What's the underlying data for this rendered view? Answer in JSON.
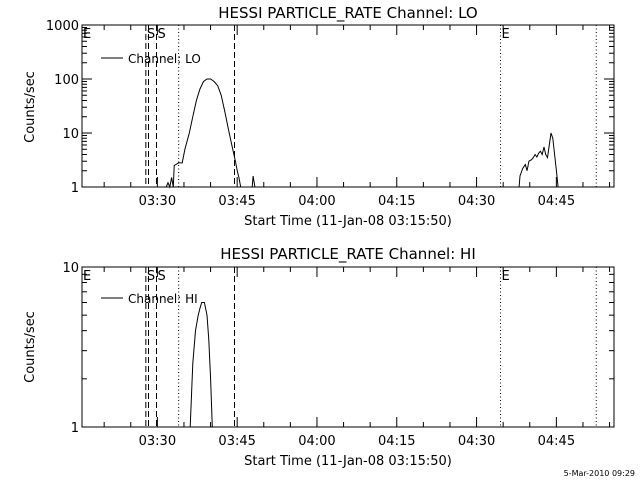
{
  "footer_stamp": "5-Mar-2010 09:29",
  "chart_data": [
    {
      "type": "line",
      "title": "HESSI PARTICLE_RATE Channel: LO",
      "xlabel": "Start Time (11-Jan-08 03:15:50)",
      "ylabel": "Counts/sec",
      "y_scale": "log",
      "ylim": [
        1,
        1000
      ],
      "y_ticks": [
        "1",
        "10",
        "100",
        "1000"
      ],
      "xlim": [
        "03:15:50",
        "04:55:50"
      ],
      "x_ticks": [
        "03:30",
        "03:45",
        "04:00",
        "04:15",
        "04:30",
        "04:45"
      ],
      "legend": {
        "position": "top-left",
        "entries": [
          "Channel: LO"
        ]
      },
      "markers": [
        {
          "label": "E",
          "time": "03:15:50",
          "style": "dotted"
        },
        {
          "label": "S",
          "time": "03:27:50",
          "style": "dashed"
        },
        {
          "label": "",
          "time": "03:28:20",
          "style": "dashed"
        },
        {
          "label": "S",
          "time": "03:29:50",
          "style": "dashed"
        },
        {
          "label": "",
          "time": "03:34:00",
          "style": "dotted"
        },
        {
          "label": "",
          "time": "03:44:30",
          "style": "dashed"
        },
        {
          "label": "E",
          "time": "04:34:30",
          "style": "dotted"
        },
        {
          "label": "",
          "time": "04:52:30",
          "style": "dotted"
        }
      ],
      "series": [
        {
          "name": "Channel: LO",
          "segments": [
            [
              [
                "03:31:40",
                1
              ],
              [
                "03:32:00",
                1.2
              ],
              [
                "03:32:20",
                1
              ],
              [
                "03:32:40",
                1.5
              ],
              [
                "03:33:00",
                1
              ],
              [
                "03:33:10",
                2.5
              ],
              [
                "03:34:00",
                2.8
              ],
              [
                "03:34:40",
                2.8
              ],
              [
                "03:35:10",
                5
              ],
              [
                "03:36:00",
                10
              ],
              [
                "03:36:40",
                20
              ],
              [
                "03:37:20",
                40
              ],
              [
                "03:38:00",
                65
              ],
              [
                "03:38:40",
                90
              ],
              [
                "03:39:20",
                100
              ],
              [
                "03:40:00",
                100
              ],
              [
                "03:40:40",
                90
              ],
              [
                "03:41:20",
                75
              ],
              [
                "03:42:00",
                50
              ],
              [
                "03:42:40",
                25
              ],
              [
                "03:43:20",
                12
              ],
              [
                "03:44:00",
                6
              ],
              [
                "03:44:40",
                3
              ],
              [
                "03:45:00",
                2
              ],
              [
                "03:45:20",
                1.5
              ],
              [
                "03:45:40",
                1
              ]
            ],
            [
              [
                "03:47:50",
                1
              ],
              [
                "03:48:00",
                1.6
              ],
              [
                "03:48:20",
                1
              ]
            ],
            [
              [
                "04:38:00",
                1
              ],
              [
                "04:38:10",
                1.6
              ],
              [
                "04:38:40",
                2.2
              ],
              [
                "04:39:10",
                2.6
              ],
              [
                "04:39:30",
                2
              ],
              [
                "04:39:50",
                3
              ],
              [
                "04:40:20",
                3.2
              ],
              [
                "04:40:40",
                3.5
              ],
              [
                "04:41:00",
                4
              ],
              [
                "04:41:20",
                3.6
              ],
              [
                "04:41:40",
                4.2
              ],
              [
                "04:42:00",
                4.6
              ],
              [
                "04:42:20",
                4
              ],
              [
                "04:42:40",
                5.5
              ],
              [
                "04:43:00",
                4
              ],
              [
                "04:43:20",
                3.5
              ],
              [
                "04:43:40",
                6
              ],
              [
                "04:44:00",
                10
              ],
              [
                "04:44:20",
                8
              ],
              [
                "04:44:40",
                4
              ],
              [
                "04:45:00",
                2
              ],
              [
                "04:45:20",
                1
              ]
            ]
          ]
        }
      ]
    },
    {
      "type": "line",
      "title": "HESSI PARTICLE_RATE Channel: HI",
      "xlabel": "Start Time (11-Jan-08 03:15:50)",
      "ylabel": "Counts/sec",
      "y_scale": "log",
      "ylim": [
        1,
        10
      ],
      "y_ticks": [
        "1",
        "10"
      ],
      "xlim": [
        "03:15:50",
        "04:55:50"
      ],
      "x_ticks": [
        "03:30",
        "03:45",
        "04:00",
        "04:15",
        "04:30",
        "04:45"
      ],
      "legend": {
        "position": "top-left",
        "entries": [
          "Channel: HI"
        ]
      },
      "markers": [
        {
          "label": "E",
          "time": "03:15:50",
          "style": "dotted"
        },
        {
          "label": "S",
          "time": "03:27:50",
          "style": "dashed"
        },
        {
          "label": "",
          "time": "03:28:20",
          "style": "dashed"
        },
        {
          "label": "S",
          "time": "03:29:50",
          "style": "dashed"
        },
        {
          "label": "",
          "time": "03:34:00",
          "style": "dotted"
        },
        {
          "label": "",
          "time": "03:44:30",
          "style": "dashed"
        },
        {
          "label": "E",
          "time": "04:34:30",
          "style": "dotted"
        },
        {
          "label": "",
          "time": "04:52:30",
          "style": "dotted"
        }
      ],
      "series": [
        {
          "name": "Channel: HI",
          "segments": [
            [
              [
                "03:36:10",
                1
              ],
              [
                "03:36:40",
                2.5
              ],
              [
                "03:37:10",
                4
              ],
              [
                "03:37:40",
                5
              ],
              [
                "03:38:00",
                5.5
              ],
              [
                "03:38:20",
                6
              ],
              [
                "03:38:50",
                6
              ],
              [
                "03:39:20",
                5
              ],
              [
                "03:39:40",
                3.5
              ],
              [
                "03:40:00",
                2
              ],
              [
                "03:40:20",
                1
              ]
            ]
          ]
        }
      ]
    }
  ]
}
